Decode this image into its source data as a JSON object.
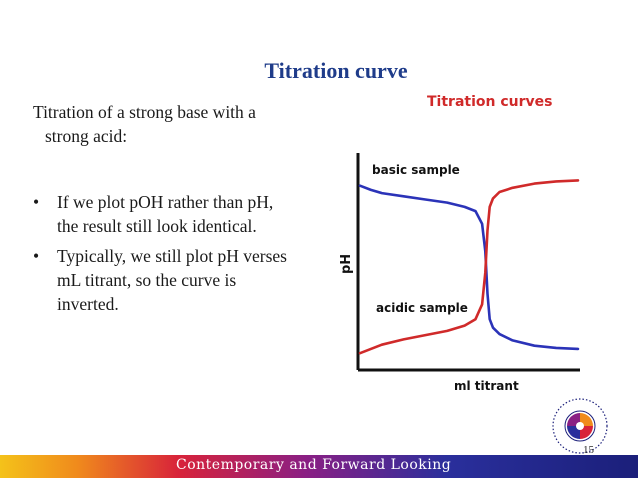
{
  "slide": {
    "title": "Titration curve",
    "intro_line1": "Titration of a strong base with a",
    "intro_line2": "strong acid:",
    "bullets": [
      {
        "marker": "•",
        "line1": "If we plot pOH rather than pH,",
        "line2": "the result still look identical.",
        "line3": ""
      },
      {
        "marker": "•",
        "line1": "Typically, we still plot pH verses",
        "line2": "mL titrant, so the curve is",
        "line3": "inverted."
      }
    ],
    "footer_text": "Contemporary and Forward Looking",
    "page_number": "15"
  },
  "chart_data": {
    "type": "line",
    "title": "Titration curves",
    "xlabel": "ml titrant",
    "ylabel": "pH",
    "grid": false,
    "legend": "none",
    "xlim": [
      0,
      10
    ],
    "ylim": [
      0,
      10
    ],
    "series": [
      {
        "name": "basic sample",
        "color": "#2b33b8",
        "x": [
          0,
          0.5,
          1,
          2,
          3,
          4,
          4.8,
          5.3,
          5.6,
          5.75,
          5.85,
          5.95,
          6.1,
          6.4,
          7,
          8,
          9,
          10
        ],
        "y": [
          8.6,
          8.4,
          8.25,
          8.1,
          7.95,
          7.8,
          7.6,
          7.4,
          6.8,
          5.5,
          3.5,
          2.3,
          1.9,
          1.6,
          1.3,
          1.05,
          0.95,
          0.9
        ]
      },
      {
        "name": "acidic sample",
        "color": "#d02a2a",
        "x": [
          0,
          0.5,
          1,
          2,
          3,
          4,
          4.8,
          5.3,
          5.6,
          5.75,
          5.85,
          5.95,
          6.1,
          6.4,
          7,
          8,
          9,
          10
        ],
        "y": [
          0.7,
          0.9,
          1.1,
          1.35,
          1.55,
          1.75,
          2.0,
          2.3,
          3.0,
          4.5,
          6.5,
          7.6,
          8.0,
          8.3,
          8.5,
          8.7,
          8.8,
          8.85
        ]
      }
    ]
  }
}
